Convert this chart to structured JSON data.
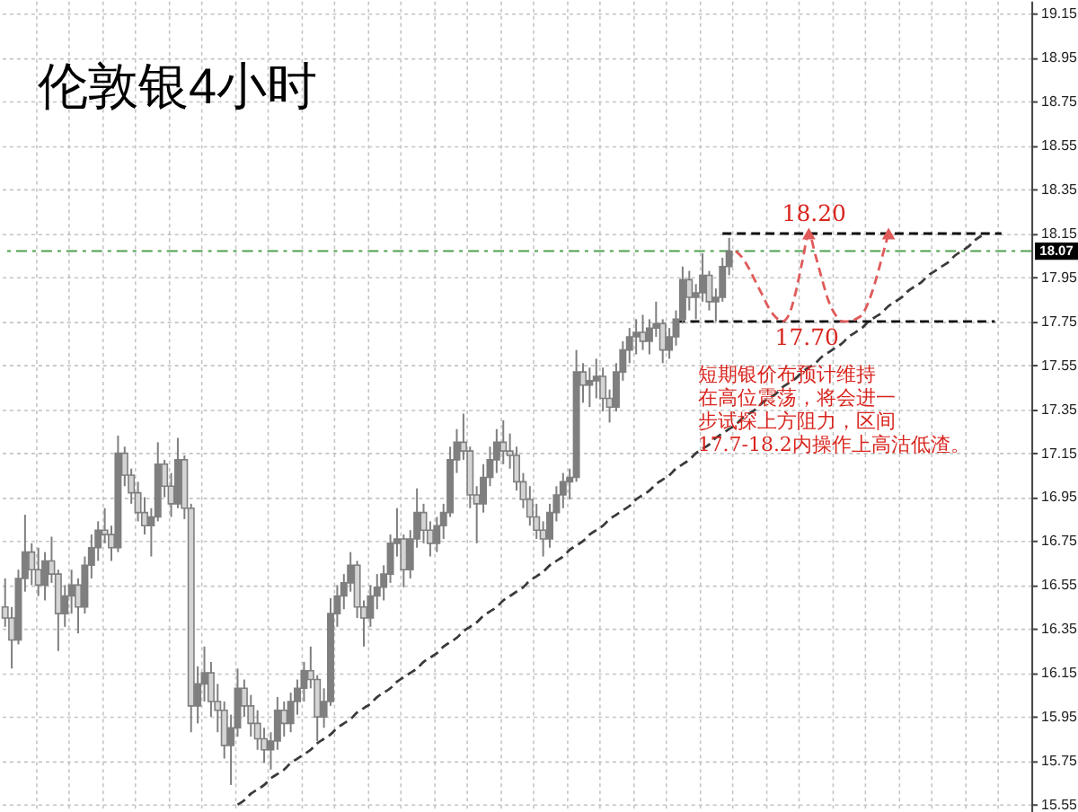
{
  "chart_data": {
    "type": "candlestick",
    "title": "伦敦银4小时",
    "color": "#7f7f7f",
    "categories": [
      null,
      null,
      null,
      null,
      null,
      null,
      null,
      null,
      null,
      null,
      null,
      null,
      null,
      null,
      null,
      null,
      null,
      null,
      null,
      null,
      null,
      null,
      null,
      null,
      null,
      null,
      null,
      null,
      null,
      null,
      null,
      null,
      null,
      null,
      null,
      null,
      null,
      null,
      null,
      null,
      null,
      null,
      null,
      null,
      null,
      null,
      null,
      null,
      null,
      null,
      null,
      null,
      null,
      null,
      null,
      null,
      null,
      null,
      null,
      null,
      null,
      null,
      null,
      null,
      null,
      null,
      null,
      null,
      null,
      null,
      null,
      null,
      null,
      null,
      null,
      null,
      null,
      null,
      null,
      null,
      null,
      null,
      null,
      null,
      null,
      null,
      null,
      null,
      null,
      null,
      null,
      null,
      null,
      null,
      null,
      null,
      null,
      null,
      null,
      null,
      null,
      null,
      null,
      null,
      null,
      null,
      null,
      null,
      null,
      null,
      null,
      null,
      null,
      null,
      null,
      null,
      null,
      null,
      null,
      null,
      null,
      null,
      null,
      null,
      null,
      null,
      null,
      null,
      null,
      null,
      null,
      null,
      null,
      null,
      null,
      null,
      null,
      null,
      null,
      null,
      null,
      null,
      null,
      null,
      null,
      null,
      null,
      null,
      null,
      null,
      null,
      null,
      null,
      null,
      null
    ],
    "ohlc": [
      [
        16.45,
        16.58,
        16.36,
        16.4
      ],
      [
        16.4,
        16.45,
        16.17,
        16.3
      ],
      [
        16.3,
        16.62,
        16.28,
        16.58
      ],
      [
        16.58,
        16.87,
        16.52,
        16.7
      ],
      [
        16.7,
        16.74,
        16.55,
        16.62
      ],
      [
        16.62,
        16.72,
        16.5,
        16.55
      ],
      [
        16.55,
        16.7,
        16.48,
        16.66
      ],
      [
        16.66,
        16.77,
        16.56,
        16.6
      ],
      [
        16.6,
        16.62,
        16.25,
        16.42
      ],
      [
        16.42,
        16.55,
        16.36,
        16.5
      ],
      [
        16.5,
        16.62,
        16.42,
        16.55
      ],
      [
        16.55,
        16.58,
        16.33,
        16.45
      ],
      [
        16.45,
        16.68,
        16.42,
        16.64
      ],
      [
        16.64,
        16.78,
        16.58,
        16.72
      ],
      [
        16.72,
        16.84,
        16.66,
        16.8
      ],
      [
        16.8,
        16.9,
        16.74,
        16.78
      ],
      [
        16.78,
        16.82,
        16.66,
        16.72
      ],
      [
        16.72,
        17.23,
        16.7,
        17.15
      ],
      [
        17.15,
        17.18,
        17.0,
        17.05
      ],
      [
        17.05,
        17.08,
        16.92,
        16.97
      ],
      [
        16.97,
        17.02,
        16.84,
        16.88
      ],
      [
        16.88,
        16.95,
        16.78,
        16.82
      ],
      [
        16.82,
        16.9,
        16.68,
        16.86
      ],
      [
        16.86,
        17.2,
        16.84,
        17.1
      ],
      [
        17.1,
        17.12,
        16.95,
        17.0
      ],
      [
        17.0,
        17.06,
        16.86,
        16.92
      ],
      [
        16.92,
        17.22,
        16.9,
        17.12
      ],
      [
        17.12,
        17.14,
        16.85,
        16.9
      ],
      [
        16.9,
        16.92,
        15.88,
        16.0
      ],
      [
        16.0,
        16.18,
        15.92,
        16.1
      ],
      [
        16.1,
        16.27,
        16.02,
        16.15
      ],
      [
        16.15,
        16.2,
        15.95,
        16.02
      ],
      [
        16.02,
        16.1,
        15.88,
        15.98
      ],
      [
        15.98,
        16.02,
        15.76,
        15.82
      ],
      [
        15.82,
        15.96,
        15.64,
        15.9
      ],
      [
        15.9,
        16.17,
        15.86,
        16.08
      ],
      [
        16.08,
        16.12,
        15.95,
        16.0
      ],
      [
        16.0,
        16.05,
        15.86,
        15.92
      ],
      [
        15.92,
        15.98,
        15.8,
        15.85
      ],
      [
        15.85,
        15.9,
        15.74,
        15.8
      ],
      [
        15.8,
        15.88,
        15.71,
        15.84
      ],
      [
        15.84,
        16.04,
        15.8,
        15.98
      ],
      [
        15.98,
        16.02,
        15.86,
        15.92
      ],
      [
        15.92,
        16.06,
        15.88,
        16.02
      ],
      [
        16.02,
        16.12,
        15.96,
        16.08
      ],
      [
        16.08,
        16.2,
        16.02,
        16.16
      ],
      [
        16.16,
        16.27,
        16.08,
        16.12
      ],
      [
        16.12,
        16.14,
        15.84,
        15.95
      ],
      [
        15.95,
        16.08,
        15.9,
        16.02
      ],
      [
        16.02,
        16.49,
        16.0,
        16.42
      ],
      [
        16.42,
        16.55,
        16.36,
        16.5
      ],
      [
        16.5,
        16.6,
        16.44,
        16.56
      ],
      [
        16.56,
        16.7,
        16.52,
        16.64
      ],
      [
        16.64,
        16.66,
        16.4,
        16.45
      ],
      [
        16.45,
        16.48,
        16.27,
        16.4
      ],
      [
        16.4,
        16.55,
        16.36,
        16.5
      ],
      [
        16.5,
        16.6,
        16.44,
        16.54
      ],
      [
        16.54,
        16.64,
        16.48,
        16.6
      ],
      [
        16.6,
        16.78,
        16.56,
        16.74
      ],
      [
        16.74,
        16.9,
        16.68,
        16.76
      ],
      [
        16.76,
        16.78,
        16.54,
        16.62
      ],
      [
        16.62,
        16.8,
        16.58,
        16.76
      ],
      [
        16.76,
        16.99,
        16.72,
        16.88
      ],
      [
        16.88,
        16.92,
        16.74,
        16.8
      ],
      [
        16.8,
        16.84,
        16.68,
        16.74
      ],
      [
        16.74,
        16.86,
        16.7,
        16.82
      ],
      [
        16.82,
        16.92,
        16.76,
        16.88
      ],
      [
        16.88,
        17.18,
        16.86,
        17.12
      ],
      [
        17.12,
        17.26,
        17.06,
        17.2
      ],
      [
        17.2,
        17.33,
        17.12,
        17.16
      ],
      [
        17.16,
        17.18,
        16.9,
        16.96
      ],
      [
        16.96,
        17.0,
        16.74,
        16.92
      ],
      [
        16.92,
        17.1,
        16.88,
        17.04
      ],
      [
        17.04,
        17.18,
        17.0,
        17.12
      ],
      [
        17.12,
        17.26,
        17.06,
        17.2
      ],
      [
        17.2,
        17.3,
        17.1,
        17.16
      ],
      [
        17.16,
        17.24,
        17.08,
        17.14
      ],
      [
        17.14,
        17.18,
        16.98,
        17.02
      ],
      [
        17.02,
        17.06,
        16.9,
        16.94
      ],
      [
        16.94,
        17.0,
        16.82,
        16.86
      ],
      [
        16.86,
        16.92,
        16.76,
        16.8
      ],
      [
        16.8,
        16.84,
        16.68,
        16.76
      ],
      [
        16.76,
        16.92,
        16.72,
        16.88
      ],
      [
        16.88,
        17.0,
        16.84,
        16.96
      ],
      [
        16.96,
        17.06,
        16.9,
        17.02
      ],
      [
        17.02,
        17.08,
        16.94,
        17.04
      ],
      [
        17.04,
        17.62,
        17.02,
        17.52
      ],
      [
        17.52,
        17.56,
        17.38,
        17.46
      ],
      [
        17.46,
        17.54,
        17.36,
        17.48
      ],
      [
        17.48,
        17.58,
        17.4,
        17.5
      ],
      [
        17.5,
        17.54,
        17.34,
        17.4
      ],
      [
        17.4,
        17.44,
        17.29,
        17.36
      ],
      [
        17.36,
        17.56,
        17.34,
        17.52
      ],
      [
        17.52,
        17.66,
        17.48,
        17.62
      ],
      [
        17.62,
        17.72,
        17.56,
        17.68
      ],
      [
        17.68,
        17.76,
        17.6,
        17.7
      ],
      [
        17.7,
        17.78,
        17.62,
        17.66
      ],
      [
        17.66,
        17.76,
        17.6,
        17.72
      ],
      [
        17.72,
        17.84,
        17.68,
        17.74
      ],
      [
        17.74,
        17.76,
        17.56,
        17.62
      ],
      [
        17.62,
        17.72,
        17.58,
        17.68
      ],
      [
        17.68,
        17.8,
        17.64,
        17.76
      ],
      [
        17.76,
        18.0,
        17.74,
        17.94
      ],
      [
        17.94,
        17.98,
        17.8,
        17.86
      ],
      [
        17.86,
        17.92,
        17.76,
        17.88
      ],
      [
        17.88,
        18.06,
        17.84,
        17.96
      ],
      [
        17.96,
        17.98,
        17.8,
        17.84
      ],
      [
        17.84,
        17.9,
        17.75,
        17.86
      ],
      [
        17.86,
        18.04,
        17.84,
        18.0
      ],
      [
        18.0,
        18.13,
        17.96,
        18.07
      ],
      null,
      null,
      null,
      null,
      null,
      null,
      null,
      null,
      null,
      null,
      null,
      null,
      null,
      null,
      null,
      null,
      null,
      null,
      null,
      null,
      null,
      null,
      null,
      null,
      null,
      null,
      null,
      null,
      null,
      null,
      null,
      null,
      null,
      null,
      null,
      null,
      null,
      null,
      null,
      null,
      null,
      null,
      null,
      null,
      null
    ],
    "colors": [
      "#d4d4d4",
      "#d4d4d4",
      "#7f7f7f",
      "#7f7f7f",
      "#d4d4d4",
      "#d4d4d4",
      "#7f7f7f",
      "#d4d4d4",
      "#d4d4d4",
      "#7f7f7f",
      "#7f7f7f",
      "#d4d4d4",
      "#7f7f7f",
      "#7f7f7f",
      "#7f7f7f",
      "#d4d4d4",
      "#d4d4d4",
      "#7f7f7f",
      "#d4d4d4",
      "#d4d4d4",
      "#d4d4d4",
      "#d4d4d4",
      "#7f7f7f",
      "#7f7f7f",
      "#d4d4d4",
      "#d4d4d4",
      "#7f7f7f",
      "#d4d4d4",
      "#d4d4d4",
      "#7f7f7f",
      "#7f7f7f",
      "#d4d4d4",
      "#d4d4d4",
      "#d4d4d4",
      "#7f7f7f",
      "#7f7f7f",
      "#d4d4d4",
      "#d4d4d4",
      "#d4d4d4",
      "#d4d4d4",
      "#7f7f7f",
      "#7f7f7f",
      "#d4d4d4",
      "#7f7f7f",
      "#7f7f7f",
      "#7f7f7f",
      "#d4d4d4",
      "#d4d4d4",
      "#7f7f7f",
      "#7f7f7f",
      "#7f7f7f",
      "#7f7f7f",
      "#7f7f7f",
      "#d4d4d4",
      "#d4d4d4",
      "#7f7f7f",
      "#7f7f7f",
      "#7f7f7f",
      "#7f7f7f",
      "#7f7f7f",
      "#d4d4d4",
      "#7f7f7f",
      "#7f7f7f",
      "#d4d4d4",
      "#d4d4d4",
      "#7f7f7f",
      "#7f7f7f",
      "#7f7f7f",
      "#7f7f7f",
      "#d4d4d4",
      "#d4d4d4",
      "#d4d4d4",
      "#7f7f7f",
      "#7f7f7f",
      "#7f7f7f",
      "#d4d4d4",
      "#d4d4d4",
      "#d4d4d4",
      "#d4d4d4",
      "#d4d4d4",
      "#d4d4d4",
      "#d4d4d4",
      "#7f7f7f",
      "#7f7f7f",
      "#7f7f7f",
      "#7f7f7f",
      "#7f7f7f",
      "#d4d4d4",
      "#7f7f7f",
      "#7f7f7f",
      "#d4d4d4",
      "#d4d4d4",
      "#7f7f7f",
      "#7f7f7f",
      "#7f7f7f",
      "#7f7f7f",
      "#d4d4d4",
      "#7f7f7f",
      "#7f7f7f",
      "#d4d4d4",
      "#7f7f7f",
      "#7f7f7f",
      "#7f7f7f",
      "#d4d4d4",
      "#7f7f7f",
      "#7f7f7f",
      "#d4d4d4",
      "#7f7f7f",
      "#7f7f7f",
      "#7f7f7f",
      null,
      null,
      null,
      null,
      null,
      null,
      null,
      null,
      null,
      null,
      null,
      null,
      null,
      null,
      null,
      null,
      null,
      null,
      null,
      null,
      null,
      null,
      null,
      null,
      null,
      null,
      null,
      null,
      null,
      null,
      null,
      null,
      null,
      null,
      null,
      null,
      null,
      null,
      null,
      null,
      null,
      null,
      null,
      null,
      null
    ],
    "series": [
      {
        "type": "line",
        "color": "#3a3a3a",
        "line_style": "dashed",
        "values": [
          null,
          null,
          null,
          null,
          null,
          null,
          null,
          null,
          null,
          null,
          null,
          null,
          null,
          null,
          null,
          null,
          null,
          null,
          null,
          null,
          null,
          null,
          null,
          null,
          null,
          null,
          null,
          null,
          null,
          null,
          null,
          null,
          null,
          null,
          null,
          15.55,
          15.57,
          15.6,
          15.62,
          15.64,
          15.67,
          15.69,
          15.71,
          15.74,
          15.76,
          15.78,
          15.8,
          15.83,
          15.85,
          15.87,
          15.9,
          15.92,
          15.94,
          15.97,
          15.99,
          16.01,
          16.04,
          16.06,
          16.08,
          16.11,
          16.13,
          16.15,
          16.17,
          16.2,
          16.22,
          16.24,
          16.27,
          16.29,
          16.31,
          16.34,
          16.36,
          16.38,
          16.41,
          16.43,
          16.45,
          16.48,
          16.5,
          16.52,
          16.54,
          16.57,
          16.59,
          16.61,
          16.64,
          16.66,
          16.68,
          16.71,
          16.73,
          16.75,
          16.78,
          16.8,
          16.82,
          16.85,
          16.87,
          16.89,
          16.91,
          16.94,
          16.96,
          16.98,
          17.01,
          17.03,
          17.05,
          17.08,
          17.1,
          17.12,
          17.15,
          17.17,
          17.19,
          17.22,
          17.24,
          17.26,
          17.28,
          17.31,
          17.33,
          17.35,
          17.38,
          17.4,
          17.42,
          17.45,
          17.47,
          17.49,
          17.52,
          17.54,
          17.56,
          17.59,
          17.61,
          17.63,
          17.65,
          17.68,
          17.7,
          17.72,
          17.75,
          17.77,
          17.79,
          17.82,
          17.84,
          17.86,
          17.89,
          17.91,
          17.93,
          17.96,
          17.98,
          18.0,
          18.02,
          18.05,
          18.07,
          18.09,
          18.12,
          18.14,
          null,
          null,
          null,
          null,
          null,
          null,
          null
        ]
      },
      {
        "type": "line",
        "color": "#111111",
        "line_style": "dashed",
        "values": [
          null,
          null,
          null,
          null,
          null,
          null,
          null,
          null,
          null,
          null,
          null,
          null,
          null,
          null,
          null,
          null,
          null,
          null,
          null,
          null,
          null,
          null,
          null,
          null,
          null,
          null,
          null,
          null,
          null,
          null,
          null,
          null,
          null,
          null,
          null,
          null,
          null,
          null,
          null,
          null,
          null,
          null,
          null,
          null,
          null,
          null,
          null,
          null,
          null,
          null,
          null,
          null,
          null,
          null,
          null,
          null,
          null,
          null,
          null,
          null,
          null,
          null,
          null,
          null,
          null,
          null,
          null,
          null,
          null,
          null,
          null,
          null,
          null,
          null,
          null,
          null,
          null,
          null,
          null,
          null,
          null,
          null,
          null,
          null,
          null,
          null,
          null,
          null,
          null,
          null,
          null,
          null,
          null,
          null,
          null,
          null,
          null,
          null,
          null,
          null,
          null,
          null,
          null,
          null,
          null,
          null,
          null,
          null,
          18.15,
          18.15,
          18.15,
          18.15,
          18.15,
          18.15,
          18.15,
          18.15,
          18.15,
          18.15,
          18.15,
          18.15,
          18.15,
          18.15,
          18.15,
          18.15,
          18.15,
          18.15,
          18.15,
          18.15,
          18.15,
          18.15,
          18.15,
          18.15,
          18.15,
          18.15,
          18.15,
          18.15,
          18.15,
          18.15,
          18.15,
          18.15,
          18.15,
          18.15,
          18.15,
          18.15,
          18.15,
          18.15,
          18.15,
          18.15,
          18.15,
          18.15,
          18.15,
          null,
          null,
          null,
          null
        ]
      },
      {
        "type": "line",
        "color": "#111111",
        "line_style": "dashed",
        "values": [
          null,
          null,
          null,
          null,
          null,
          null,
          null,
          null,
          null,
          null,
          null,
          null,
          null,
          null,
          null,
          null,
          null,
          null,
          null,
          null,
          null,
          null,
          null,
          null,
          null,
          null,
          null,
          null,
          null,
          null,
          null,
          null,
          null,
          null,
          null,
          null,
          null,
          null,
          null,
          null,
          null,
          null,
          null,
          null,
          null,
          null,
          null,
          null,
          null,
          null,
          null,
          null,
          null,
          null,
          null,
          null,
          null,
          null,
          null,
          null,
          null,
          null,
          null,
          null,
          null,
          null,
          null,
          null,
          null,
          null,
          null,
          null,
          null,
          null,
          null,
          null,
          null,
          null,
          null,
          null,
          null,
          null,
          null,
          null,
          null,
          null,
          null,
          null,
          null,
          null,
          null,
          null,
          null,
          null,
          null,
          null,
          null,
          null,
          null,
          null,
          null,
          17.75,
          17.75,
          17.75,
          17.75,
          17.75,
          17.75,
          17.75,
          17.75,
          17.75,
          17.75,
          17.75,
          17.75,
          17.75,
          17.75,
          17.75,
          17.75,
          17.75,
          17.75,
          17.75,
          17.75,
          17.75,
          17.75,
          17.75,
          17.75,
          17.75,
          17.75,
          17.75,
          17.75,
          17.75,
          17.75,
          17.75,
          17.75,
          17.75,
          17.75,
          17.75,
          17.75,
          17.75,
          17.75,
          17.75,
          17.75,
          17.75,
          17.75,
          17.75,
          17.75,
          17.75,
          17.75,
          17.75,
          17.75,
          17.75,
          null,
          null,
          null,
          null,
          null
        ]
      },
      {
        "type": "line",
        "color": "#e05a5a",
        "line_style": "dashed",
        "values": [
          null,
          null,
          null,
          null,
          null,
          null,
          null,
          null,
          null,
          null,
          null,
          null,
          null,
          null,
          null,
          null,
          null,
          null,
          null,
          null,
          null,
          null,
          null,
          null,
          null,
          null,
          null,
          null,
          null,
          null,
          null,
          null,
          null,
          null,
          null,
          null,
          null,
          null,
          null,
          null,
          null,
          null,
          null,
          null,
          null,
          null,
          null,
          null,
          null,
          null,
          null,
          null,
          null,
          null,
          null,
          null,
          null,
          null,
          null,
          null,
          null,
          null,
          null,
          null,
          null,
          null,
          null,
          null,
          null,
          null,
          null,
          null,
          null,
          null,
          null,
          null,
          null,
          null,
          null,
          null,
          null,
          null,
          null,
          null,
          null,
          null,
          null,
          null,
          null,
          null,
          null,
          null,
          null,
          null,
          null,
          null,
          null,
          null,
          null,
          null,
          null,
          null,
          null,
          null,
          null,
          null,
          null,
          null,
          null,
          null,
          18.07,
          18.04,
          17.99,
          17.93,
          17.87,
          17.81,
          17.77,
          17.75,
          17.78,
          17.88,
          18.02,
          18.15,
          18.05,
          17.94,
          17.84,
          17.78,
          17.75,
          17.75,
          17.76,
          17.78,
          17.84,
          17.93,
          18.04,
          18.15,
          null,
          null,
          null,
          null,
          null,
          null,
          null,
          null,
          null,
          null,
          null,
          null,
          null,
          null,
          null,
          null,
          null,
          null,
          null,
          null,
          null
        ]
      }
    ],
    "ylim": [
      15.52,
      19.21
    ],
    "yticks": [
      15.55,
      15.75,
      15.95,
      16.15,
      16.35,
      16.55,
      16.75,
      16.95,
      17.15,
      17.35,
      17.55,
      17.75,
      17.95,
      18.15,
      18.35,
      18.55,
      18.75,
      18.95,
      19.15
    ],
    "ref_lines": [
      {
        "axis": "y",
        "value": 18.07,
        "label": "18.07",
        "color": "#4fa04f",
        "line_style": "dashed"
      }
    ],
    "annotations": [
      "18.20",
      "17.70",
      "短期银价布预计维持在高位震荡，将会进一步试探上方阻力，区间17.7-18.2内操作上高沽低渣。"
    ],
    "grid": true,
    "tick_labels": "y"
  }
}
